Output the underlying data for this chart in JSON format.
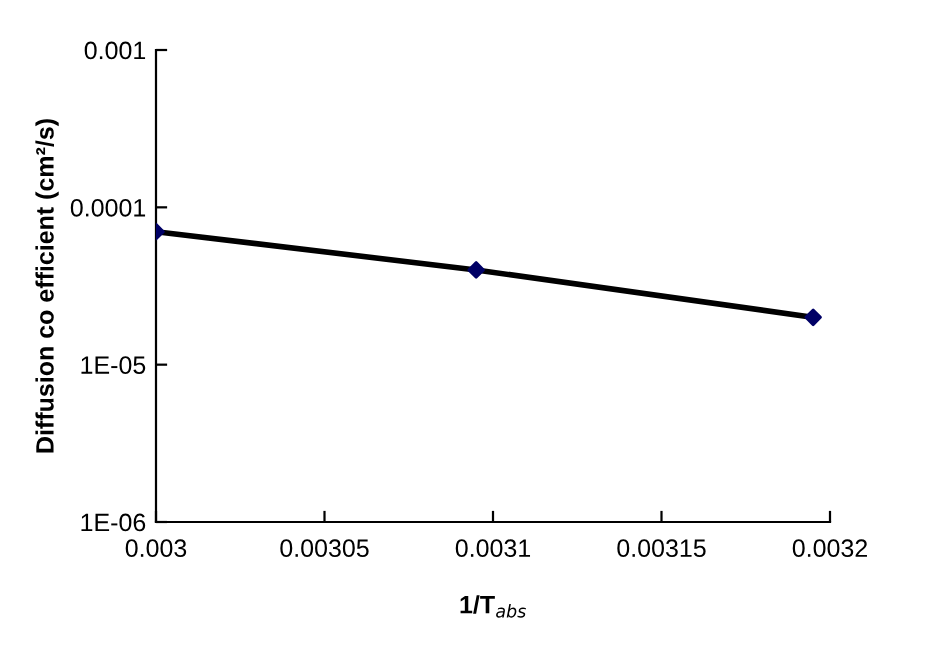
{
  "chart_data": {
    "type": "scatter",
    "xlabel": "1/T$_{abs}$",
    "ylabel": "Diffusion co efficient (cm²/s)",
    "x": [
      0.003,
      0.003095,
      0.003195
    ],
    "series": [
      {
        "type": "line",
        "color": "#000000",
        "values": [
          7e-05,
          4e-05,
          2e-05
        ],
        "marker": "none",
        "line_style": "solid"
      },
      {
        "color": "#000066",
        "values": [
          7e-05,
          4e-05,
          2e-05
        ],
        "marker": "diamond"
      }
    ],
    "log": "y",
    "xlim": [
      0.003,
      0.0032
    ],
    "xticks": [
      0.003,
      0.00305,
      0.0031,
      0.00315,
      0.0032
    ],
    "ylim": [
      1e-06,
      0.001
    ],
    "yticks": [
      {
        "value": 1e-06,
        "label": "1E-06"
      },
      {
        "value": 1e-05,
        "label": "1E-05"
      },
      0.0001,
      0.001
    ],
    "grid": false,
    "legend": false
  }
}
